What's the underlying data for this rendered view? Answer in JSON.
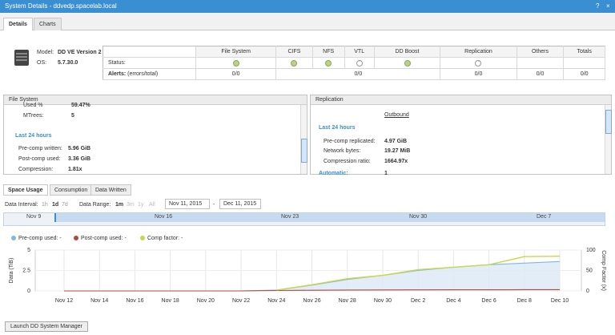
{
  "window": {
    "title": "System Details - ddvedp.spacelab.local",
    "help": "?",
    "close": "×"
  },
  "tabs": [
    {
      "label": "Details",
      "active": true
    },
    {
      "label": "Charts",
      "active": false
    }
  ],
  "system": {
    "model_label": "Model:",
    "model": "DD VE Version 2",
    "os_label": "OS:",
    "os": "5.7.30.0"
  },
  "services": {
    "headers": [
      "File System",
      "CIFS",
      "NFS",
      "VTL",
      "DD Boost",
      "Replication",
      "Others",
      "Totals"
    ],
    "status_label": "Status:",
    "status": [
      "ok",
      "ok",
      "ok",
      "off",
      "ok",
      "off",
      "",
      ""
    ],
    "alerts_label": "Alerts:",
    "alerts_sub": "(errors/total)",
    "alerts": [
      "0/0",
      "0/0",
      "0/0",
      "0/0",
      "0/0"
    ]
  },
  "filesystem_panel": {
    "title": "File System",
    "used_label": "Used %",
    "used_value": "59.47%",
    "mtrees_label": "MTrees:",
    "mtrees_value": "5",
    "last24": "Last 24 hours",
    "precomp_label": "Pre-comp written:",
    "precomp_value": "5.96 GiB",
    "postcomp_label": "Post-comp used:",
    "postcomp_value": "3.36 GiB",
    "compression_label": "Compression:",
    "compression_value": "1.81x"
  },
  "replication_panel": {
    "title": "Replication",
    "outbound": "Outbound",
    "last24": "Last 24 hours",
    "precomp_label": "Pre-comp replicated:",
    "precomp_value": "4.97 GiB",
    "netbytes_label": "Network bytes:",
    "netbytes_value": "19.27 MiB",
    "ratio_label": "Compression ratio:",
    "ratio_value": "1664.97x",
    "automatic_label": "Automatic:",
    "automatic_value": "1"
  },
  "chart_tabs": [
    {
      "label": "Space Usage",
      "active": true
    },
    {
      "label": "Consumption",
      "active": false
    },
    {
      "label": "Data Written",
      "active": false
    }
  ],
  "controls": {
    "interval_label": "Data Interval:",
    "intervals": [
      "1h",
      "1d",
      "7d"
    ],
    "range_label": "Data Range:",
    "ranges": [
      "1m",
      "3m",
      "1y",
      "All"
    ],
    "from": "Nov 11, 2015",
    "dash": "-",
    "to": "Dec 11, 2015"
  },
  "navigator": {
    "labels": [
      "Nov 9",
      "Nov 16",
      "Nov 23",
      "Nov 30",
      "Dec 7"
    ]
  },
  "launch_button": "Launch DD System Manager",
  "colors": {
    "accent": "#3a8fd2",
    "precomp": "#7fb8e0",
    "postcomp": "#b04a3c",
    "comp": "#c8d84a"
  },
  "chart_data": {
    "type": "line",
    "x": [
      "Nov 12",
      "Nov 14",
      "Nov 16",
      "Nov 18",
      "Nov 20",
      "Nov 22",
      "Nov 24",
      "Nov 26",
      "Nov 28",
      "Nov 30",
      "Dec 2",
      "Dec 4",
      "Dec 6",
      "Dec 8",
      "Dec 10"
    ],
    "series": [
      {
        "name": "Pre-comp used:",
        "legend_value": "-",
        "axis": "left",
        "values": [
          0,
          0,
          0,
          0,
          0,
          0,
          0.1,
          0.7,
          1.4,
          1.9,
          2.5,
          2.9,
          3.2,
          3.4,
          3.6
        ]
      },
      {
        "name": "Post-comp used:",
        "legend_value": "-",
        "axis": "left",
        "values": [
          0,
          0,
          0,
          0,
          0,
          0,
          0.05,
          0.08,
          0.1,
          0.12,
          0.13,
          0.14,
          0.14,
          0.15,
          0.15
        ]
      },
      {
        "name": "Comp factor:",
        "legend_value": "-",
        "axis": "right",
        "values": [
          null,
          null,
          null,
          null,
          null,
          null,
          2,
          15,
          30,
          38,
          52,
          58,
          64,
          84,
          85
        ]
      }
    ],
    "ylabel": "Data (TiB)",
    "y_ticks": [
      0,
      2.5,
      5
    ],
    "ylim": [
      0,
      5
    ],
    "y2label": "Comp Factor (x)",
    "y2_ticks": [
      0,
      50,
      100
    ],
    "y2lim": [
      0,
      100
    ],
    "legend": "top-left",
    "grid": true
  }
}
